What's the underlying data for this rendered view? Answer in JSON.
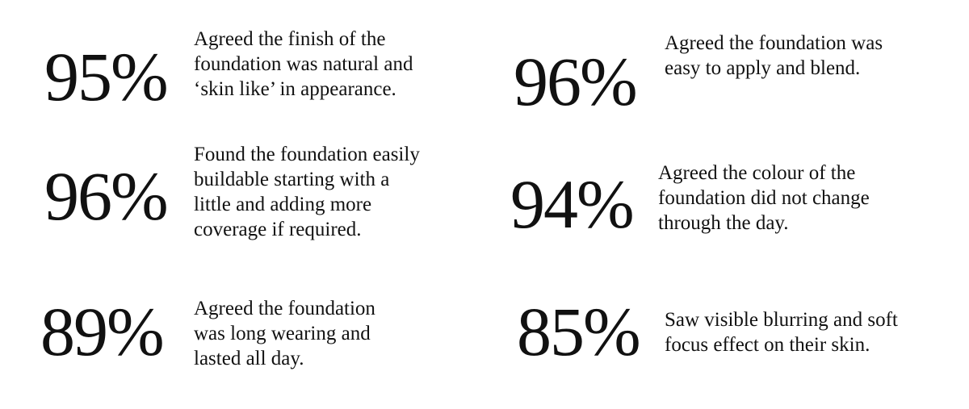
{
  "text_color": "#111111",
  "stats": [
    {
      "value": "95%",
      "text": "Agreed the finish of the\nfoundation was natural and\n‘skin like’ in appearance."
    },
    {
      "value": "96%",
      "text": "Agreed the foundation was\neasy to apply and blend."
    },
    {
      "value": "96%",
      "text": "Found the foundation easily\nbuildable starting with a\nlittle and adding more\ncoverage if required."
    },
    {
      "value": "94%",
      "text": "Agreed the colour of the\nfoundation did not change\nthrough the day."
    },
    {
      "value": "89%",
      "text": "Agreed the foundation\nwas long wearing and\nlasted all day."
    },
    {
      "value": "85%",
      "text": "Saw visible blurring and soft\nfocus effect on their skin."
    }
  ]
}
